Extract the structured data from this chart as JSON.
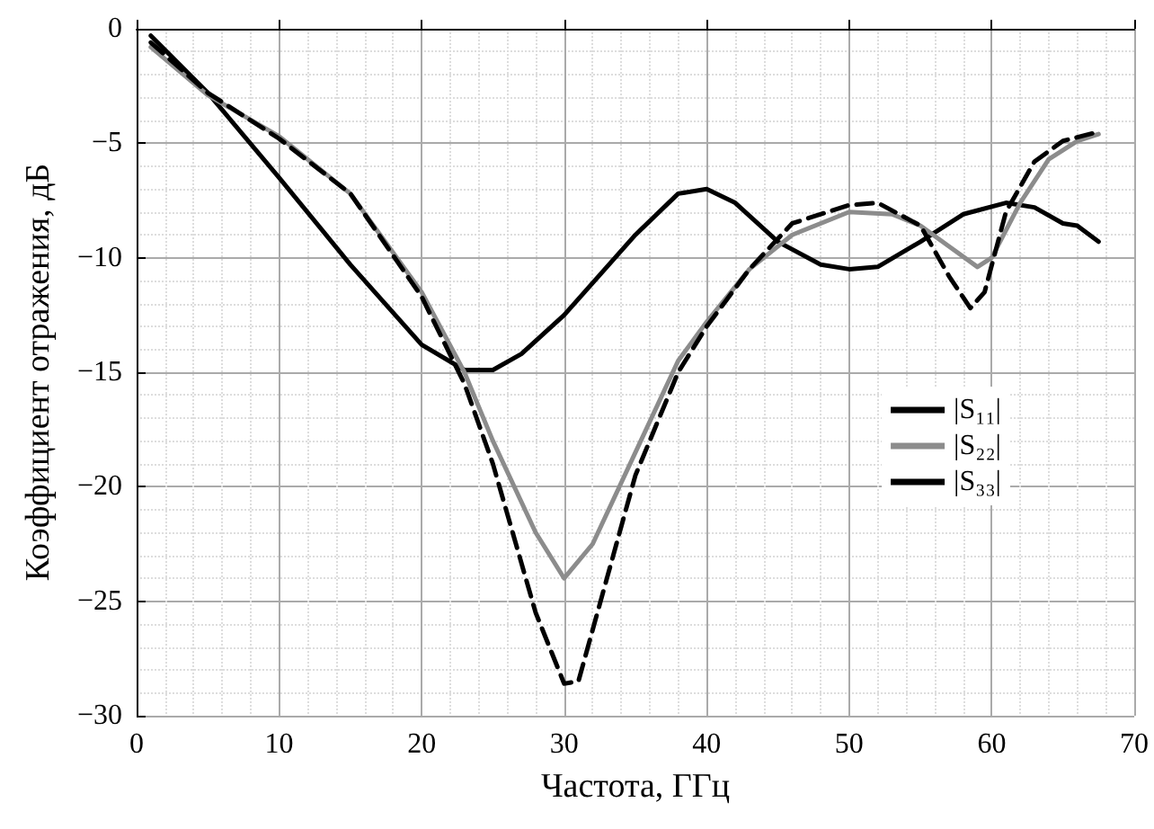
{
  "chart_data": {
    "type": "line",
    "xlabel": "Частота, ГГц",
    "ylabel": "Коэффициент отражения, дБ",
    "xlim": [
      0,
      70
    ],
    "xticks": [
      0,
      10,
      20,
      30,
      40,
      50,
      60,
      70
    ],
    "ylim": [
      -30,
      0
    ],
    "yticks": [
      {
        "value": -30,
        "label": "−30"
      },
      {
        "value": -25,
        "label": "−25"
      },
      {
        "value": -20,
        "label": "−20"
      },
      {
        "value": -15,
        "label": "−15"
      },
      {
        "value": -10,
        "label": "−10"
      },
      {
        "value": -5,
        "label": "−5"
      },
      {
        "value": 0,
        "label": "0"
      }
    ],
    "grid": true,
    "legend": "right",
    "marker": "none",
    "series": [
      {
        "name": "|S₁₁|",
        "color": "#000000",
        "line_style": "solid",
        "x": [
          1,
          5,
          10,
          15,
          20,
          23,
          25,
          27,
          30,
          35,
          38,
          40,
          42,
          45,
          48,
          50,
          52,
          55,
          58,
          61,
          63,
          65,
          66,
          67.5
        ],
        "values": [
          -0.3,
          -2.8,
          -6.5,
          -10.3,
          -13.8,
          -14.9,
          -14.9,
          -14.2,
          -12.5,
          -9,
          -7.2,
          -7,
          -7.6,
          -9.3,
          -10.3,
          -10.5,
          -10.4,
          -9.3,
          -8.1,
          -7.6,
          -7.8,
          -8.5,
          -8.6,
          -9.3
        ]
      },
      {
        "name": "|S₂₂|",
        "color": "#8c8c8c",
        "line_style": "solid",
        "x": [
          1,
          5,
          10,
          15,
          20,
          23,
          25,
          28,
          30,
          32,
          35,
          38,
          40,
          43,
          46,
          50,
          53,
          55,
          57,
          59,
          60,
          62,
          64,
          66,
          67.5
        ],
        "values": [
          -0.8,
          -2.9,
          -4.7,
          -7.2,
          -11.5,
          -15,
          -18,
          -22,
          -24,
          -22.5,
          -18.5,
          -14.5,
          -12.8,
          -10.5,
          -9,
          -8,
          -8.1,
          -8.6,
          -9.5,
          -10.4,
          -10,
          -7.6,
          -5.7,
          -4.9,
          -4.6
        ]
      },
      {
        "name": "|S₃₃|",
        "color": "#000000",
        "line_style": "dashed",
        "x": [
          1,
          5,
          10,
          15,
          20,
          23,
          25,
          28,
          30,
          31,
          33,
          35,
          38,
          40,
          43,
          46,
          50,
          52,
          55,
          57,
          58.5,
          59.5,
          61,
          63,
          65,
          67.5
        ],
        "values": [
          -0.6,
          -2.8,
          -4.8,
          -7.2,
          -11.7,
          -15.5,
          -19,
          -25.5,
          -28.6,
          -28.5,
          -24,
          -19.5,
          -15,
          -13,
          -10.5,
          -8.5,
          -7.7,
          -7.6,
          -8.6,
          -10.8,
          -12.2,
          -11.5,
          -8,
          -5.8,
          -4.9,
          -4.5
        ]
      }
    ]
  }
}
